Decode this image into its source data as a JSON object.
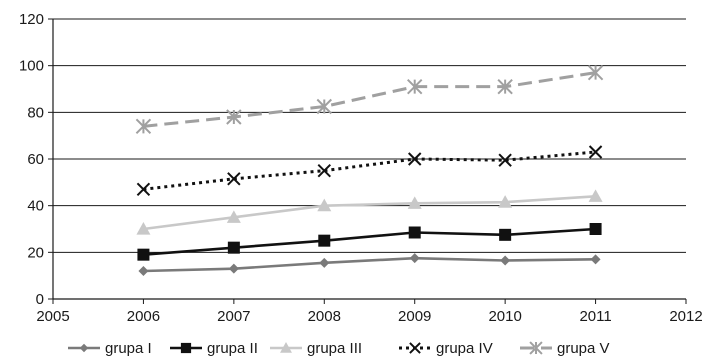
{
  "chart_data": {
    "type": "line",
    "title": "",
    "xlabel": "",
    "ylabel": "",
    "xlim": [
      2005,
      2012
    ],
    "ylim": [
      0,
      120
    ],
    "x_ticks": [
      "2005",
      "2006",
      "2007",
      "2008",
      "2009",
      "2010",
      "2011",
      "2012"
    ],
    "y_ticks": [
      "0",
      "20",
      "40",
      "60",
      "80",
      "100",
      "120"
    ],
    "grid": "horizontal",
    "legend_position": "bottom",
    "x": [
      2006,
      2007,
      2008,
      2009,
      2010,
      2011
    ],
    "series": [
      {
        "name": "grupa I",
        "values": [
          12,
          13,
          15.5,
          17.5,
          16.5,
          17
        ],
        "color": "#7a7a7a",
        "line_style": "solid",
        "marker": "diamond"
      },
      {
        "name": "grupa II",
        "values": [
          19,
          22,
          25,
          28.5,
          27.5,
          30
        ],
        "color": "#111111",
        "line_style": "solid",
        "marker": "square"
      },
      {
        "name": "grupa III",
        "values": [
          30,
          35,
          40,
          41,
          41.5,
          44
        ],
        "color": "#c8c8c8",
        "line_style": "solid",
        "marker": "triangle"
      },
      {
        "name": "grupa IV",
        "values": [
          47,
          51.5,
          55,
          60,
          59.5,
          63
        ],
        "color": "#111111",
        "line_style": "dotted",
        "marker": "x"
      },
      {
        "name": "grupa V",
        "values": [
          74,
          78,
          82.5,
          91,
          91,
          97
        ],
        "color": "#a0a0a0",
        "line_style": "dashed",
        "marker": "star"
      }
    ]
  }
}
